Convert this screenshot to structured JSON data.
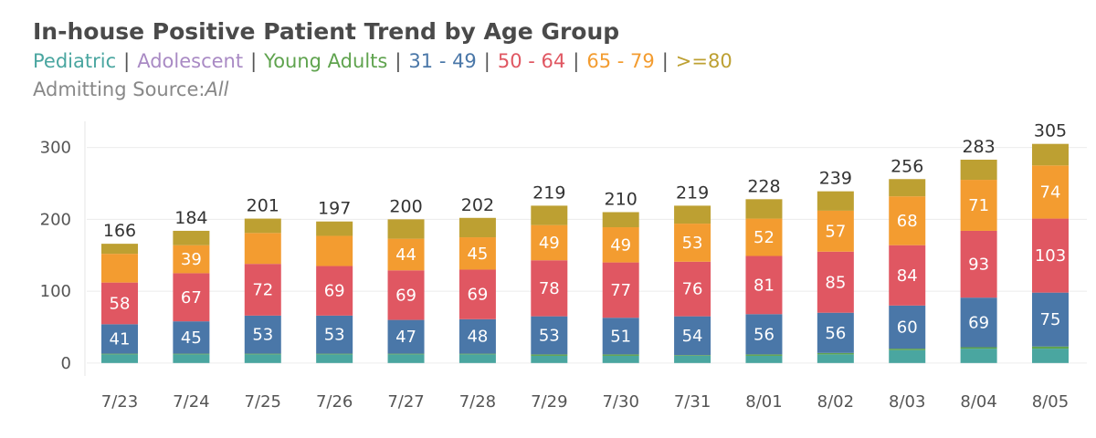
{
  "chart_data": {
    "type": "bar",
    "stacked": true,
    "title": "In-house Positive Patient Trend by Age Group",
    "legend": {
      "placement": "top-left",
      "separator": "|",
      "entries": [
        {
          "label": "Pediatric",
          "color": "#4aa6a0"
        },
        {
          "label": "Adolescent",
          "color": "#a98ac4"
        },
        {
          "label": "Young Adults",
          "color": "#5fa34e"
        },
        {
          "label": "31 - 49",
          "color": "#4a77a8"
        },
        {
          "label": "50 - 64",
          "color": "#e05762"
        },
        {
          "label": "65 - 79",
          "color": "#f39c30"
        },
        {
          "label": ">=80",
          "color": "#bda032"
        }
      ]
    },
    "subtitle_label": "Admitting Source:",
    "subtitle_value": "All",
    "categories": [
      "7/23",
      "7/24",
      "7/25",
      "7/26",
      "7/27",
      "7/28",
      "7/29",
      "7/30",
      "7/31",
      "8/01",
      "8/02",
      "8/03",
      "8/04",
      "8/05"
    ],
    "ylim": [
      -18,
      330
    ],
    "yticks": [
      0,
      100,
      200,
      300
    ],
    "grid": true,
    "series": [
      {
        "name": "Pediatric",
        "color": "#4aa6a0",
        "values": [
          12,
          12,
          12,
          12,
          12,
          12,
          10,
          10,
          10,
          10,
          12,
          18,
          20,
          20
        ],
        "labels": [
          "",
          "",
          "",
          "",
          "",
          "",
          "",
          "",
          "",
          "",
          "",
          "",
          "",
          ""
        ]
      },
      {
        "name": "Adolescent",
        "color": "#a98ac4",
        "values": [
          0,
          0,
          0,
          0,
          0,
          0,
          0,
          0,
          0,
          0,
          0,
          0,
          0,
          0
        ],
        "labels": [
          "",
          "",
          "",
          "",
          "",
          "",
          "",
          "",
          "",
          "",
          "",
          "",
          "",
          ""
        ]
      },
      {
        "name": "Young Adults",
        "color": "#5fa34e",
        "values": [
          1,
          1,
          1,
          1,
          1,
          1,
          2,
          2,
          1,
          2,
          2,
          2,
          2,
          3
        ],
        "labels": [
          "",
          "",
          "",
          "",
          "",
          "",
          "",
          "",
          "",
          "",
          "",
          "",
          "",
          ""
        ]
      },
      {
        "name": "31 - 49",
        "color": "#4a77a8",
        "values": [
          41,
          45,
          53,
          53,
          47,
          48,
          53,
          51,
          54,
          56,
          56,
          60,
          69,
          75
        ],
        "labels": [
          "41",
          "45",
          "53",
          "53",
          "47",
          "48",
          "53",
          "51",
          "54",
          "56",
          "56",
          "60",
          "69",
          "75"
        ]
      },
      {
        "name": "50 - 64",
        "color": "#e05762",
        "values": [
          58,
          67,
          72,
          69,
          69,
          69,
          78,
          77,
          76,
          81,
          85,
          84,
          93,
          103
        ],
        "labels": [
          "58",
          "67",
          "72",
          "69",
          "69",
          "69",
          "78",
          "77",
          "76",
          "81",
          "85",
          "84",
          "93",
          "103"
        ]
      },
      {
        "name": "65 - 79",
        "color": "#f39c30",
        "values": [
          40,
          39,
          43,
          42,
          44,
          45,
          49,
          49,
          53,
          52,
          57,
          68,
          71,
          74
        ],
        "labels": [
          "",
          "39",
          "",
          "",
          "44",
          "45",
          "49",
          "49",
          "53",
          "52",
          "57",
          "68",
          "71",
          "74"
        ]
      },
      {
        "name": ">=80",
        "color": "#bda032",
        "values": [
          14,
          20,
          20,
          20,
          27,
          27,
          27,
          21,
          25,
          27,
          27,
          24,
          28,
          30
        ],
        "labels": [
          "",
          "",
          "",
          "",
          "",
          "",
          "",
          "",
          "",
          "",
          "",
          "",
          "",
          ""
        ]
      }
    ],
    "totals": [
      166,
      184,
      201,
      197,
      200,
      202,
      219,
      210,
      219,
      228,
      239,
      256,
      283,
      305
    ]
  }
}
